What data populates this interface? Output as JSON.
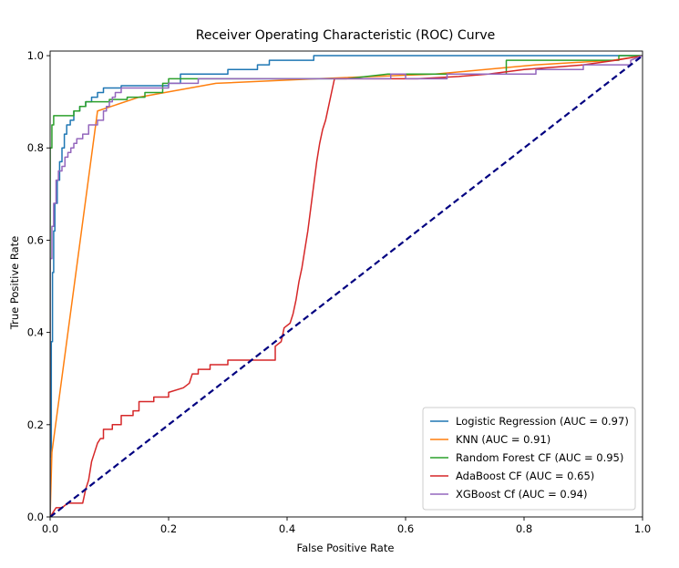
{
  "chart_data": {
    "type": "line",
    "title": "Receiver Operating Characteristic (ROC) Curve",
    "xlabel": "False Positive Rate",
    "ylabel": "True Positive Rate",
    "xlim": [
      0,
      1
    ],
    "ylim": [
      0,
      1.01
    ],
    "xticks": [
      0.0,
      0.2,
      0.4,
      0.6,
      0.8,
      1.0
    ],
    "yticks": [
      0.0,
      0.2,
      0.4,
      0.6,
      0.8,
      1.0
    ],
    "xtick_labels": [
      "0.0",
      "0.2",
      "0.4",
      "0.6",
      "0.8",
      "1.0"
    ],
    "ytick_labels": [
      "0.0",
      "0.2",
      "0.4",
      "0.6",
      "0.8",
      "1.0"
    ],
    "grid": false,
    "legend_position": "lower-right",
    "series": [
      {
        "name": "Logistic Regression (AUC = 0.97)",
        "color": "#1f77b4",
        "points": [
          [
            0,
            0
          ],
          [
            0,
            0.13
          ],
          [
            0.002,
            0.13
          ],
          [
            0.002,
            0.38
          ],
          [
            0.004,
            0.38
          ],
          [
            0.004,
            0.53
          ],
          [
            0.006,
            0.53
          ],
          [
            0.006,
            0.62
          ],
          [
            0.008,
            0.62
          ],
          [
            0.008,
            0.68
          ],
          [
            0.012,
            0.68
          ],
          [
            0.012,
            0.73
          ],
          [
            0.016,
            0.73
          ],
          [
            0.016,
            0.77
          ],
          [
            0.02,
            0.77
          ],
          [
            0.02,
            0.8
          ],
          [
            0.024,
            0.8
          ],
          [
            0.024,
            0.83
          ],
          [
            0.028,
            0.83
          ],
          [
            0.028,
            0.85
          ],
          [
            0.034,
            0.85
          ],
          [
            0.034,
            0.86
          ],
          [
            0.04,
            0.86
          ],
          [
            0.04,
            0.88
          ],
          [
            0.05,
            0.88
          ],
          [
            0.05,
            0.89
          ],
          [
            0.06,
            0.89
          ],
          [
            0.06,
            0.9
          ],
          [
            0.07,
            0.9
          ],
          [
            0.07,
            0.91
          ],
          [
            0.08,
            0.91
          ],
          [
            0.08,
            0.92
          ],
          [
            0.09,
            0.92
          ],
          [
            0.09,
            0.93
          ],
          [
            0.12,
            0.93
          ],
          [
            0.12,
            0.935
          ],
          [
            0.2,
            0.935
          ],
          [
            0.2,
            0.94
          ],
          [
            0.22,
            0.94
          ],
          [
            0.22,
            0.96
          ],
          [
            0.3,
            0.96
          ],
          [
            0.3,
            0.97
          ],
          [
            0.35,
            0.97
          ],
          [
            0.35,
            0.98
          ],
          [
            0.37,
            0.98
          ],
          [
            0.37,
            0.99
          ],
          [
            0.445,
            0.99
          ],
          [
            0.445,
            1.0
          ],
          [
            1.0,
            1.0
          ]
        ]
      },
      {
        "name": "KNN (AUC = 0.91)",
        "color": "#ff7f0e",
        "points": [
          [
            0,
            0
          ],
          [
            0.003,
            0.14
          ],
          [
            0.08,
            0.88
          ],
          [
            0.15,
            0.91
          ],
          [
            0.28,
            0.94
          ],
          [
            0.45,
            0.95
          ],
          [
            0.65,
            0.96
          ],
          [
            0.82,
            0.98
          ],
          [
            0.95,
            0.99
          ],
          [
            1.0,
            1.0
          ]
        ]
      },
      {
        "name": "Random Forest CF (AUC = 0.95)",
        "color": "#2ca02c",
        "points": [
          [
            0,
            0
          ],
          [
            0,
            0.8
          ],
          [
            0.003,
            0.8
          ],
          [
            0.003,
            0.85
          ],
          [
            0.006,
            0.85
          ],
          [
            0.006,
            0.87
          ],
          [
            0.04,
            0.87
          ],
          [
            0.04,
            0.88
          ],
          [
            0.05,
            0.88
          ],
          [
            0.05,
            0.89
          ],
          [
            0.06,
            0.89
          ],
          [
            0.06,
            0.9
          ],
          [
            0.1,
            0.9
          ],
          [
            0.1,
            0.905
          ],
          [
            0.13,
            0.905
          ],
          [
            0.13,
            0.91
          ],
          [
            0.16,
            0.91
          ],
          [
            0.16,
            0.92
          ],
          [
            0.19,
            0.92
          ],
          [
            0.19,
            0.94
          ],
          [
            0.2,
            0.94
          ],
          [
            0.2,
            0.95
          ],
          [
            0.5,
            0.95
          ],
          [
            0.57,
            0.96
          ],
          [
            0.77,
            0.96
          ],
          [
            0.77,
            0.99
          ],
          [
            0.96,
            0.99
          ],
          [
            0.96,
            1.0
          ],
          [
            1.0,
            1.0
          ]
        ]
      },
      {
        "name": "AdaBoost CF (AUC = 0.65)",
        "color": "#d62728",
        "points": [
          [
            0,
            0
          ],
          [
            0.005,
            0.01
          ],
          [
            0.01,
            0.02
          ],
          [
            0.02,
            0.02
          ],
          [
            0.03,
            0.03
          ],
          [
            0.055,
            0.03
          ],
          [
            0.06,
            0.06
          ],
          [
            0.065,
            0.08
          ],
          [
            0.07,
            0.12
          ],
          [
            0.075,
            0.14
          ],
          [
            0.08,
            0.16
          ],
          [
            0.085,
            0.17
          ],
          [
            0.09,
            0.17
          ],
          [
            0.09,
            0.19
          ],
          [
            0.105,
            0.19
          ],
          [
            0.105,
            0.2
          ],
          [
            0.12,
            0.2
          ],
          [
            0.12,
            0.22
          ],
          [
            0.14,
            0.22
          ],
          [
            0.14,
            0.23
          ],
          [
            0.15,
            0.23
          ],
          [
            0.15,
            0.25
          ],
          [
            0.175,
            0.25
          ],
          [
            0.175,
            0.26
          ],
          [
            0.2,
            0.26
          ],
          [
            0.2,
            0.27
          ],
          [
            0.225,
            0.28
          ],
          [
            0.235,
            0.29
          ],
          [
            0.24,
            0.31
          ],
          [
            0.25,
            0.31
          ],
          [
            0.25,
            0.32
          ],
          [
            0.27,
            0.32
          ],
          [
            0.27,
            0.33
          ],
          [
            0.3,
            0.33
          ],
          [
            0.3,
            0.34
          ],
          [
            0.38,
            0.34
          ],
          [
            0.38,
            0.37
          ],
          [
            0.39,
            0.38
          ],
          [
            0.395,
            0.41
          ],
          [
            0.405,
            0.42
          ],
          [
            0.41,
            0.44
          ],
          [
            0.415,
            0.47
          ],
          [
            0.42,
            0.51
          ],
          [
            0.425,
            0.54
          ],
          [
            0.43,
            0.58
          ],
          [
            0.435,
            0.62
          ],
          [
            0.44,
            0.67
          ],
          [
            0.445,
            0.72
          ],
          [
            0.45,
            0.77
          ],
          [
            0.455,
            0.81
          ],
          [
            0.46,
            0.84
          ],
          [
            0.465,
            0.86
          ],
          [
            0.47,
            0.89
          ],
          [
            0.475,
            0.92
          ],
          [
            0.48,
            0.95
          ],
          [
            0.55,
            0.95
          ],
          [
            0.62,
            0.95
          ],
          [
            0.69,
            0.955
          ],
          [
            0.74,
            0.96
          ],
          [
            0.8,
            0.97
          ],
          [
            0.9,
            0.98
          ],
          [
            0.955,
            0.99
          ],
          [
            1.0,
            1.0
          ]
        ]
      },
      {
        "name": "XGBoost Cf (AUC = 0.94)",
        "color": "#9467bd",
        "points": [
          [
            0,
            0
          ],
          [
            0,
            0.56
          ],
          [
            0.003,
            0.56
          ],
          [
            0.003,
            0.63
          ],
          [
            0.006,
            0.63
          ],
          [
            0.006,
            0.68
          ],
          [
            0.01,
            0.68
          ],
          [
            0.01,
            0.73
          ],
          [
            0.014,
            0.73
          ],
          [
            0.014,
            0.75
          ],
          [
            0.02,
            0.75
          ],
          [
            0.02,
            0.76
          ],
          [
            0.025,
            0.76
          ],
          [
            0.025,
            0.78
          ],
          [
            0.03,
            0.78
          ],
          [
            0.03,
            0.79
          ],
          [
            0.035,
            0.79
          ],
          [
            0.035,
            0.8
          ],
          [
            0.04,
            0.8
          ],
          [
            0.04,
            0.81
          ],
          [
            0.045,
            0.81
          ],
          [
            0.045,
            0.82
          ],
          [
            0.055,
            0.82
          ],
          [
            0.055,
            0.83
          ],
          [
            0.065,
            0.83
          ],
          [
            0.065,
            0.85
          ],
          [
            0.08,
            0.85
          ],
          [
            0.08,
            0.86
          ],
          [
            0.09,
            0.86
          ],
          [
            0.09,
            0.88
          ],
          [
            0.095,
            0.88
          ],
          [
            0.095,
            0.89
          ],
          [
            0.1,
            0.89
          ],
          [
            0.1,
            0.9
          ],
          [
            0.105,
            0.9
          ],
          [
            0.105,
            0.91
          ],
          [
            0.11,
            0.91
          ],
          [
            0.11,
            0.92
          ],
          [
            0.12,
            0.92
          ],
          [
            0.12,
            0.93
          ],
          [
            0.2,
            0.93
          ],
          [
            0.2,
            0.94
          ],
          [
            0.25,
            0.94
          ],
          [
            0.25,
            0.95
          ],
          [
            0.45,
            0.95
          ],
          [
            0.575,
            0.95
          ],
          [
            0.575,
            0.96
          ],
          [
            0.6,
            0.96
          ],
          [
            0.6,
            0.95
          ],
          [
            0.67,
            0.95
          ],
          [
            0.67,
            0.96
          ],
          [
            0.82,
            0.96
          ],
          [
            0.82,
            0.97
          ],
          [
            0.9,
            0.97
          ],
          [
            0.9,
            0.98
          ],
          [
            0.98,
            0.98
          ],
          [
            0.98,
            0.99
          ],
          [
            1.0,
            1.0
          ]
        ]
      }
    ],
    "reference_line": {
      "color": "#000080",
      "dashed": true,
      "points": [
        [
          0,
          0
        ],
        [
          1,
          1
        ]
      ]
    }
  }
}
